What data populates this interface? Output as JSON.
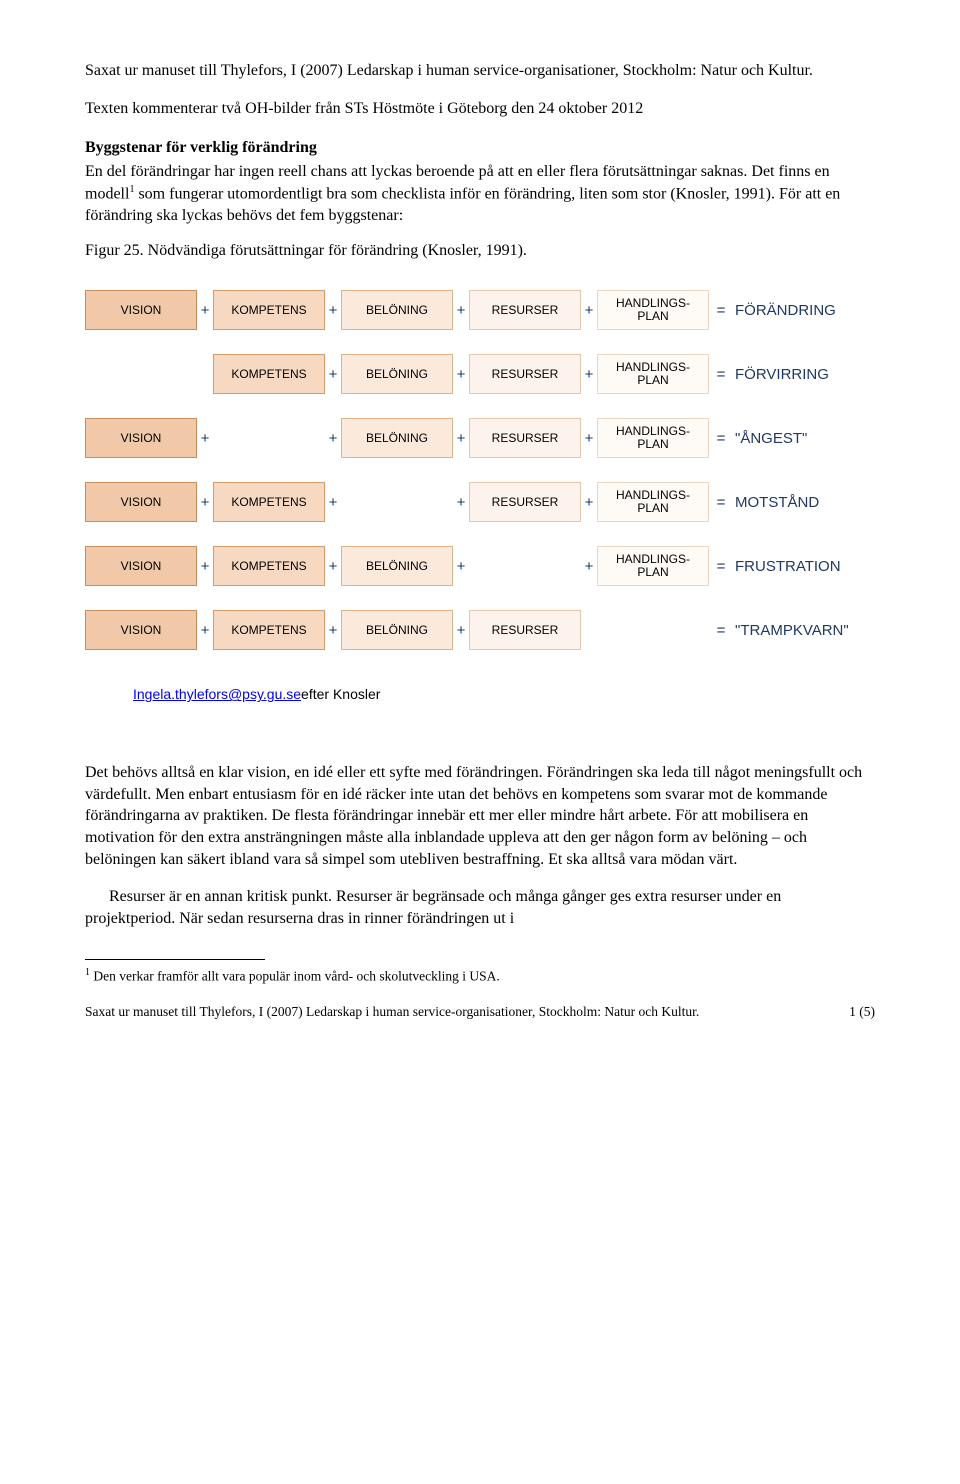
{
  "text": {
    "intro": "Saxat ur manuset till Thylefors, I (2007) Ledarskap i human service-organisationer, Stockholm: Natur och Kultur.",
    "context": "Texten kommenterar två OH-bilder från STs Höstmöte i Göteborg den 24 oktober 2012",
    "heading": "Byggstenar för verklig förändring",
    "body1a": "En del förändringar har ingen reell chans att lyckas beroende på att en eller flera förutsättningar saknas. Det finns en modell",
    "body1sup": "1",
    "body1b": " som fungerar utomordentligt bra som checklista inför en förändring, liten som stor (Knosler, 1991). För att en förändring ska lyckas behövs det fem byggstenar:",
    "figcap": "Figur 25. Nödvändiga förutsättningar för förändring (Knosler, 1991).",
    "attribution_link": "Ingela.thylefors@psy.gu.se",
    "attribution_after": "efter Knosler",
    "body2": "Det behövs alltså en klar vision, en idé eller ett syfte med förändringen. Förändringen ska leda till något meningsfullt och värdefullt. Men enbart entusiasm för en idé räcker inte utan det behövs en kompetens som svarar mot de kommande förändringarna av praktiken. De flesta förändringar innebär ett mer eller mindre hårt arbete. För att mobilisera en motivation för den extra ansträngningen måste alla inblandade uppleva att den ger någon form av belöning – och belöningen kan säkert ibland vara så simpel som utebliven bestraffning. Et ska alltså vara mödan värt.",
    "body3": "Resurser är en annan kritisk punkt. Resurser är begränsade och många gånger ges extra resurser under en projektperiod. När sedan resurserna dras in rinner förändringen ut i",
    "footnote_num": "1",
    "footnote": " Den verkar framför allt vara populär inom vård- och skolutveckling i USA.",
    "footer_left": "Saxat ur manuset till Thylefors, I (2007) Ledarskap i human service-organisationer, Stockholm: Natur och Kultur.",
    "footer_right": "1 (5)"
  },
  "diagram": {
    "op_plus": "+",
    "op_eq": "=",
    "labels": {
      "vision": "VISION",
      "kompetens": "KOMPETENS",
      "beloning": "BELÖNING",
      "resurser": "RESURSER",
      "handlingsplan": "HANDLINGS-\nPLAN"
    },
    "colors": {
      "vision_bg": "#f2c9a8",
      "vision_border": "#c98c5a",
      "kompetens_bg": "#f7d9c2",
      "kompetens_border": "#d69a6b",
      "beloning_bg": "#fbe9db",
      "beloning_border": "#e0b38a",
      "resurser_bg": "#fdf3ec",
      "resurser_border": "#e6c5a8",
      "handlingsplan_bg": "#fefaf6",
      "handlingsplan_border": "#ecd4bf",
      "result_text": "#1f3864",
      "op_text": "#1f3864"
    },
    "rows": [
      {
        "cells": [
          "vision",
          "kompetens",
          "beloning",
          "resurser",
          "handlingsplan"
        ],
        "result": "FÖRÄNDRING"
      },
      {
        "cells": [
          null,
          "kompetens",
          "beloning",
          "resurser",
          "handlingsplan"
        ],
        "result": "FÖRVIRRING"
      },
      {
        "cells": [
          "vision",
          null,
          "beloning",
          "resurser",
          "handlingsplan"
        ],
        "result": "\"ÅNGEST\""
      },
      {
        "cells": [
          "vision",
          "kompetens",
          null,
          "resurser",
          "handlingsplan"
        ],
        "result": "MOTSTÅND"
      },
      {
        "cells": [
          "vision",
          "kompetens",
          "beloning",
          null,
          "handlingsplan"
        ],
        "result": "FRUSTRATION"
      },
      {
        "cells": [
          "vision",
          "kompetens",
          "beloning",
          "resurser",
          null
        ],
        "result": "\"TRAMPKVARN\""
      }
    ]
  }
}
